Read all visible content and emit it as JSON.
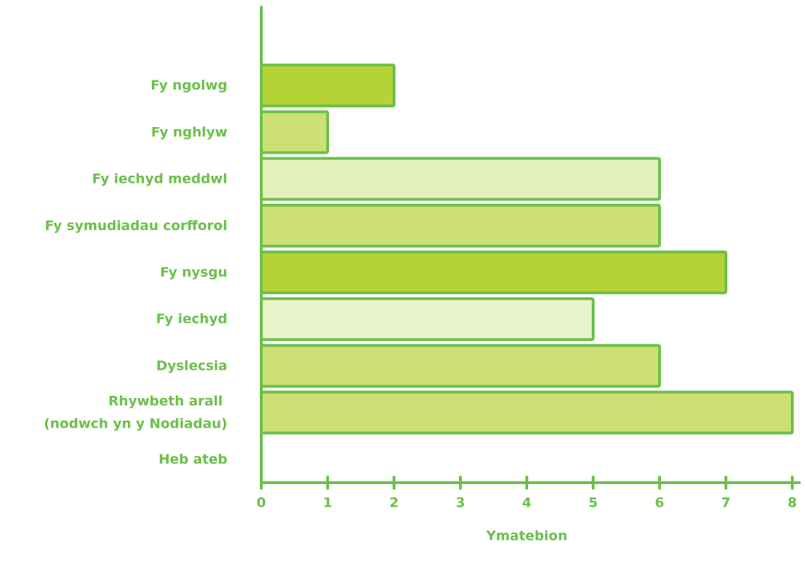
{
  "chart_data": {
    "type": "barh",
    "x_label": "Ymatebion",
    "categories": [
      "Fy ngolwg",
      "Fy nghlyw",
      "Fy iechyd meddwl",
      "Fy symudiadau corfforol",
      "Fy nysgu",
      "Fy iechyd",
      "Dyslecsia",
      "Rhywbeth arall \n(nodwch yn y Nodiadau)",
      "Heb ateb"
    ],
    "values": [
      2,
      1,
      6,
      6,
      7,
      5,
      6,
      8,
      0
    ],
    "colors": [
      "#b5d334",
      "#cce075",
      "#e3f0bb",
      "#cce075",
      "#b5d334",
      "#e9f3c9",
      "#cce075",
      "#cce075",
      "#cce075"
    ],
    "xlim": [
      0,
      8
    ],
    "xticks": [
      0,
      1,
      2,
      3,
      4,
      5,
      6,
      7,
      8
    ],
    "grid": false
  }
}
